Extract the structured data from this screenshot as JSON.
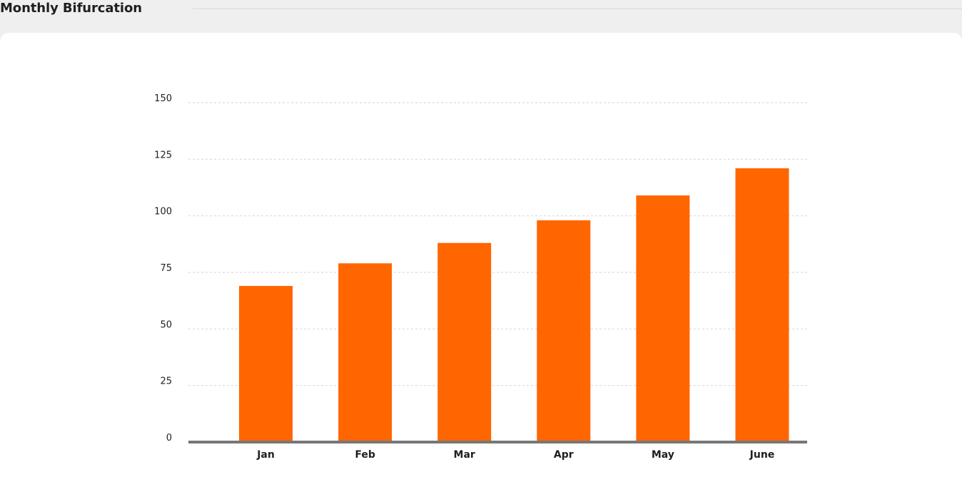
{
  "header": {
    "title": "Monthly Bifurcation"
  },
  "chart_data": {
    "type": "bar",
    "categories": [
      "Jan",
      "Feb",
      "Mar",
      "Apr",
      "May",
      "June"
    ],
    "values": [
      69,
      79,
      88,
      98,
      109,
      121
    ],
    "yticks": [
      0,
      25,
      50,
      75,
      100,
      125,
      150
    ],
    "ylim": [
      0,
      150
    ],
    "grid": true,
    "bar_color": "#ff6600",
    "axis_color": "#777777",
    "grid_color": "#d9d9d9"
  }
}
